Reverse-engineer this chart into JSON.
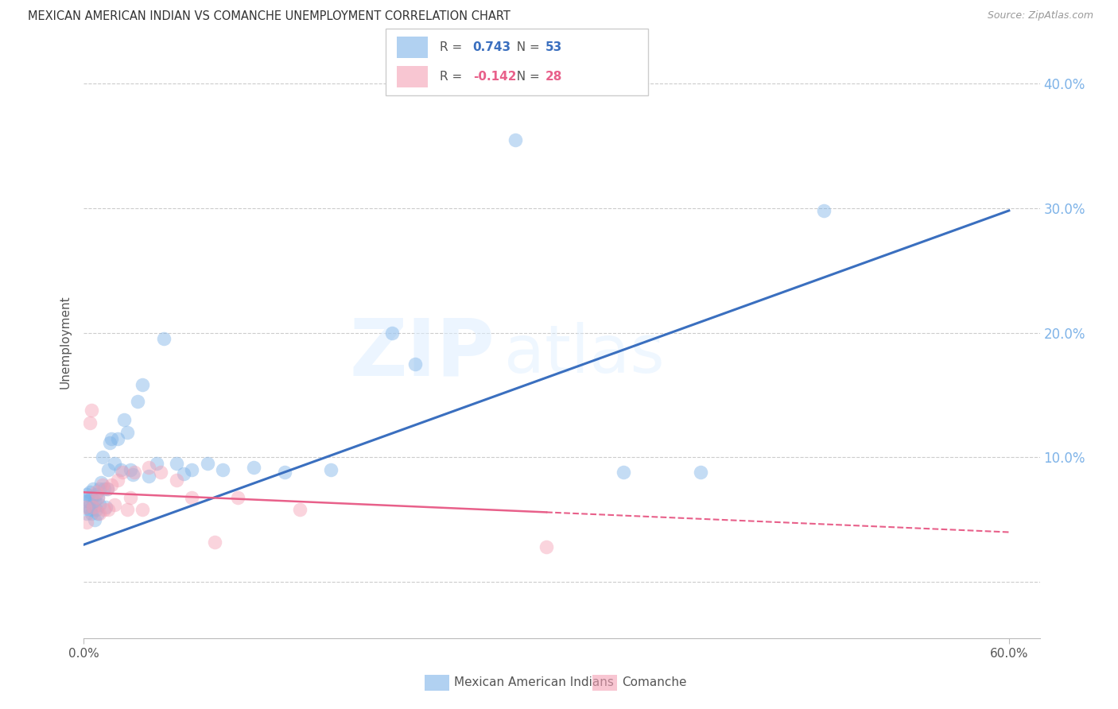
{
  "title": "MEXICAN AMERICAN INDIAN VS COMANCHE UNEMPLOYMENT CORRELATION CHART",
  "source": "Source: ZipAtlas.com",
  "ylabel": "Unemployment",
  "watermark_text": "ZIPatlas",
  "legend_label_blue": "Mexican American Indians",
  "legend_label_pink": "Comanche",
  "xlim": [
    0.0,
    0.62
  ],
  "ylim": [
    -0.045,
    0.43
  ],
  "yticks": [
    0.0,
    0.1,
    0.2,
    0.3,
    0.4
  ],
  "ytick_labels": [
    "",
    "10.0%",
    "20.0%",
    "30.0%",
    "40.0%"
  ],
  "blue_scatter_x": [
    0.001,
    0.002,
    0.002,
    0.003,
    0.003,
    0.004,
    0.004,
    0.005,
    0.005,
    0.006,
    0.006,
    0.007,
    0.007,
    0.008,
    0.008,
    0.009,
    0.009,
    0.01,
    0.01,
    0.011,
    0.012,
    0.013,
    0.014,
    0.015,
    0.016,
    0.017,
    0.018,
    0.02,
    0.022,
    0.024,
    0.026,
    0.028,
    0.03,
    0.032,
    0.035,
    0.038,
    0.042,
    0.047,
    0.052,
    0.06,
    0.065,
    0.07,
    0.08,
    0.09,
    0.11,
    0.13,
    0.16,
    0.2,
    0.215,
    0.28,
    0.35,
    0.4,
    0.48
  ],
  "blue_scatter_y": [
    0.065,
    0.055,
    0.07,
    0.06,
    0.065,
    0.058,
    0.072,
    0.055,
    0.068,
    0.06,
    0.075,
    0.05,
    0.065,
    0.058,
    0.07,
    0.055,
    0.068,
    0.062,
    0.075,
    0.08,
    0.1,
    0.075,
    0.06,
    0.075,
    0.09,
    0.112,
    0.115,
    0.095,
    0.115,
    0.09,
    0.13,
    0.12,
    0.09,
    0.086,
    0.145,
    0.158,
    0.085,
    0.095,
    0.195,
    0.095,
    0.087,
    0.09,
    0.095,
    0.09,
    0.092,
    0.088,
    0.09,
    0.2,
    0.175,
    0.355,
    0.088,
    0.088,
    0.298
  ],
  "pink_scatter_x": [
    0.001,
    0.002,
    0.004,
    0.005,
    0.006,
    0.008,
    0.009,
    0.01,
    0.012,
    0.013,
    0.015,
    0.016,
    0.018,
    0.02,
    0.022,
    0.025,
    0.028,
    0.03,
    0.033,
    0.038,
    0.042,
    0.05,
    0.06,
    0.07,
    0.085,
    0.1,
    0.14,
    0.3
  ],
  "pink_scatter_y": [
    0.06,
    0.048,
    0.128,
    0.138,
    0.06,
    0.072,
    0.068,
    0.055,
    0.078,
    0.058,
    0.075,
    0.058,
    0.078,
    0.062,
    0.082,
    0.088,
    0.058,
    0.068,
    0.088,
    0.058,
    0.092,
    0.088,
    0.082,
    0.068,
    0.032,
    0.068,
    0.058,
    0.028
  ],
  "blue_line_x": [
    0.0,
    0.6
  ],
  "blue_line_y": [
    0.03,
    0.298
  ],
  "pink_line_x": [
    0.0,
    0.6
  ],
  "pink_line_y": [
    0.072,
    0.04
  ],
  "blue_scatter_color": "#7EB3E8",
  "pink_scatter_color": "#F4A0B5",
  "blue_line_color": "#3A6FBF",
  "pink_line_color": "#E8608A",
  "right_tick_color": "#7EB3E8",
  "bg_color": "#FFFFFF",
  "grid_color": "#CCCCCC",
  "title_color": "#333333",
  "source_color": "#999999"
}
